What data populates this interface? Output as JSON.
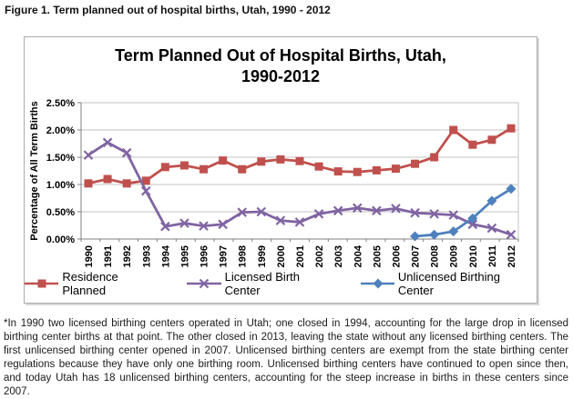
{
  "figure_caption": "Figure 1. Term planned out of hospital births, Utah, 1990 - 2012",
  "chart_data": {
    "type": "line",
    "title": "Term Planned Out of Hospital Births, Utah, 1990-2012",
    "title_lines": [
      "Term Planned Out of Hospital Births, Utah,",
      "1990-2012"
    ],
    "xlabel": "",
    "ylabel": "Percentage of All Term Births",
    "ylim": [
      0,
      2.5
    ],
    "ytick_step": 0.5,
    "ytick_labels": [
      "0.00%",
      "0.50%",
      "1.00%",
      "1.50%",
      "2.00%",
      "2.50%"
    ],
    "grid": true,
    "legend_position": "bottom",
    "categories": [
      "1990",
      "1991",
      "1992",
      "1993",
      "1994",
      "1995",
      "1996",
      "1997",
      "1998",
      "1999",
      "2000",
      "2001",
      "2002",
      "2003",
      "2004",
      "2005",
      "2006",
      "2007",
      "2008",
      "2009",
      "2010",
      "2011",
      "2012"
    ],
    "series": [
      {
        "name": "Residence Planned",
        "color": "#C0504D",
        "marker": "square",
        "values": [
          1.02,
          1.1,
          1.02,
          1.07,
          1.32,
          1.35,
          1.28,
          1.44,
          1.28,
          1.42,
          1.46,
          1.43,
          1.33,
          1.24,
          1.23,
          1.26,
          1.29,
          1.38,
          1.5,
          2.0,
          1.73,
          1.82,
          2.03
        ]
      },
      {
        "name": "Licensed Birth Center",
        "color": "#8064A2",
        "marker": "x",
        "values": [
          1.54,
          1.77,
          1.58,
          0.88,
          0.23,
          0.29,
          0.24,
          0.27,
          0.49,
          0.5,
          0.34,
          0.31,
          0.46,
          0.52,
          0.57,
          0.52,
          0.56,
          0.48,
          0.46,
          0.44,
          0.27,
          0.2,
          0.08
        ]
      },
      {
        "name": "Unlicensed Birthing Center",
        "color": "#4F81BD",
        "marker": "diamond",
        "values": [
          null,
          null,
          null,
          null,
          null,
          null,
          null,
          null,
          null,
          null,
          null,
          null,
          null,
          null,
          null,
          null,
          null,
          0.05,
          0.08,
          0.14,
          0.38,
          0.7,
          0.92
        ]
      }
    ]
  },
  "footnote": "*In 1990 two licensed birthing centers operated in Utah; one closed in 1994, accounting for the large drop in licensed birthing center births at that point. The other closed in 2013, leaving the state without any licensed birthing centers. The first unlicensed birthing center opened in 2007. Unlicensed birthing centers are exempt from the state birthing center regulations because they have only one birthing room. Unlicensed birthing centers have continued to open since then, and today Utah has 18 unlicensed birthing centers, accounting for the steep increase in births in these centers since 2007."
}
